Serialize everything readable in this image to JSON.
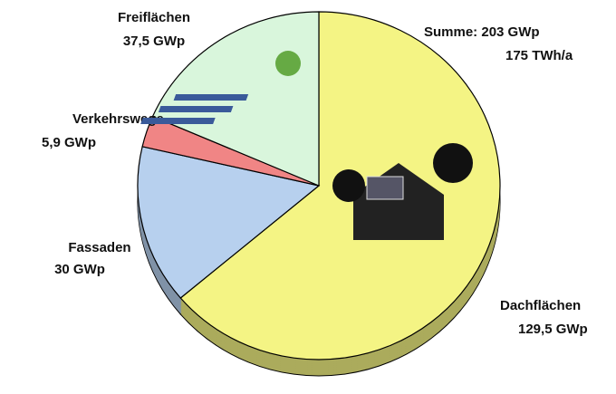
{
  "chart_data": {
    "type": "pie",
    "annotations": [
      "Summe: 203 GWp",
      "175 TWh/a"
    ],
    "categories": [
      "Dachflächen",
      "Fassaden",
      "Verkehrswege",
      "Freiflächen"
    ],
    "values": [
      129.5,
      30,
      5.9,
      37.5
    ],
    "value_labels": [
      "129,5 GWp",
      "30 GWp",
      "5,9 GWp",
      "37,5 GWp"
    ],
    "colors": [
      "#f4f484",
      "#b7d0ee",
      "#f08585",
      "#d9f6dc"
    ]
  }
}
